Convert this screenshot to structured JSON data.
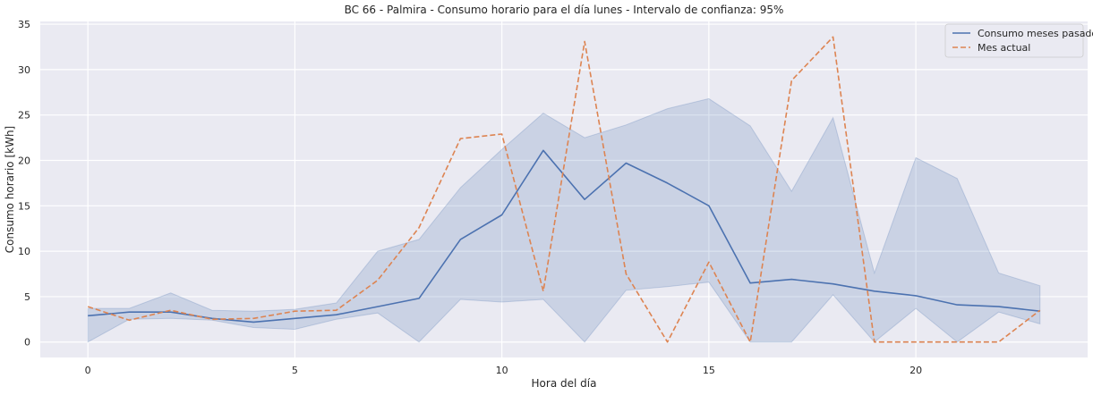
{
  "chart_data": {
    "type": "line",
    "title": "BC 66 - Palmira - Consumo horario para el día lunes - Intervalo de confianza: 95%",
    "xlabel": "Hora del día",
    "ylabel": "Consumo horario [kWh]",
    "xlim": [
      -1.15,
      24.15
    ],
    "ylim": [
      -1.7,
      35.3
    ],
    "xticks": [
      0,
      5,
      10,
      15,
      20
    ],
    "yticks": [
      0,
      5,
      10,
      15,
      20,
      25,
      30,
      35
    ],
    "grid": true,
    "legend_position": "top-right",
    "x": [
      0,
      1,
      2,
      3,
      4,
      5,
      6,
      7,
      8,
      9,
      10,
      11,
      12,
      13,
      14,
      15,
      16,
      17,
      18,
      19,
      20,
      21,
      22,
      23
    ],
    "series": [
      {
        "name": "Consumo meses pasados",
        "style": "solid",
        "color": "#4c72b0",
        "values": [
          2.9,
          3.3,
          3.3,
          2.6,
          2.2,
          2.6,
          3.0,
          3.9,
          4.8,
          11.3,
          14.0,
          21.1,
          15.7,
          19.7,
          17.5,
          15.0,
          6.5,
          6.9,
          6.4,
          5.6,
          5.1,
          4.1,
          3.9,
          3.4
        ],
        "ci_lower": [
          0,
          2.5,
          2.6,
          2.4,
          1.6,
          1.4,
          2.5,
          3.2,
          0,
          4.7,
          4.4,
          4.7,
          0,
          5.7,
          6.1,
          6.6,
          0,
          0,
          5.2,
          0,
          3.7,
          0,
          3.3,
          2.0
        ],
        "ci_upper": [
          3.7,
          3.7,
          5.4,
          3.5,
          3.4,
          3.6,
          4.3,
          10.0,
          11.3,
          17.0,
          21.2,
          25.2,
          22.5,
          23.9,
          25.7,
          26.8,
          23.8,
          16.6,
          24.7,
          7.6,
          20.3,
          18.0,
          7.6,
          6.2
        ]
      },
      {
        "name": "Mes actual",
        "style": "dashed",
        "color": "#dd8452",
        "values": [
          3.9,
          2.4,
          3.5,
          2.5,
          2.6,
          3.4,
          3.5,
          6.8,
          12.6,
          22.4,
          22.9,
          5.6,
          33.1,
          7.5,
          0,
          8.8,
          0,
          28.8,
          33.6,
          0,
          0,
          0,
          0,
          3.5
        ]
      }
    ]
  }
}
